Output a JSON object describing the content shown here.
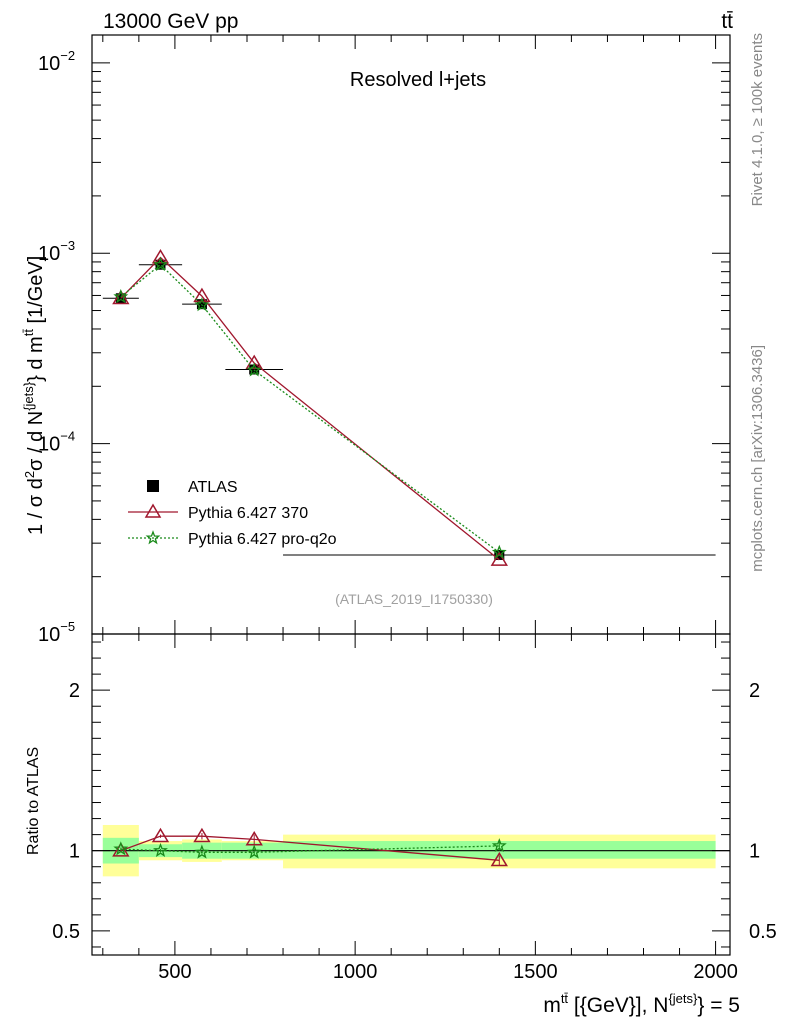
{
  "header": {
    "energy_label": "13000 GeV pp",
    "process_label": "tt̄"
  },
  "side_labels": {
    "rivet": "Rivet 4.1.0, ≥ 100k events",
    "mcplots": "mcplots.cern.ch [arXiv:1306.3436]"
  },
  "chart_data": [
    {
      "type": "line",
      "panel": "main",
      "title": "Resolved l+jets",
      "analysis_id": "(ATLAS_2019_I1750330)",
      "ylabel": "1 / σ d²σ / d N^{jets} d m^{tt̄} [1/GeV]",
      "yscale": "log",
      "ylim": [
        1e-05,
        0.014
      ],
      "xlim": [
        270,
        2040
      ],
      "xticks": [
        500,
        1000,
        1500,
        2000
      ],
      "ytick_labels": [
        {
          "value": 0.01,
          "base": "10",
          "exp": "−2"
        },
        {
          "value": 0.001,
          "base": "10",
          "exp": "−3"
        },
        {
          "value": 0.0001,
          "base": "10",
          "exp": "−4"
        },
        {
          "value": 1e-05,
          "base": "10",
          "exp": "−5"
        }
      ],
      "legend_position": "bottom-left",
      "series": [
        {
          "name": "ATLAS",
          "marker": "square",
          "color": "#000000",
          "x": [
            350,
            460,
            575,
            720,
            1400
          ],
          "y": [
            0.00058,
            0.00087,
            0.00054,
            0.000245,
            2.6e-05
          ],
          "xerr": [
            50,
            60,
            55,
            80,
            600
          ]
        },
        {
          "name": "Pythia 6.427 370",
          "marker": "triangle",
          "color": "#a0172d",
          "line": "solid",
          "x": [
            350,
            460,
            575,
            720,
            1400
          ],
          "y": [
            0.00058,
            0.00095,
            0.000595,
            0.000265,
            2.45e-05
          ]
        },
        {
          "name": "Pythia 6.427 pro-q2o",
          "marker": "star",
          "color": "#1a8a1a",
          "line": "dotted",
          "x": [
            350,
            460,
            575,
            720,
            1400
          ],
          "y": [
            0.00059,
            0.00087,
            0.000535,
            0.000243,
            2.68e-05
          ]
        }
      ]
    },
    {
      "type": "line",
      "panel": "ratio",
      "ylabel": "Ratio to ATLAS",
      "xlabel": "m^{tt̄} [{GeV}], N^{jets} = 5",
      "ylim": [
        0.35,
        2.35
      ],
      "xlim": [
        270,
        2040
      ],
      "xticks": [
        500,
        1000,
        1500,
        2000
      ],
      "yticks": [
        0.5,
        1,
        2
      ],
      "bands": [
        {
          "x0": 300,
          "x1": 400,
          "inner": [
            0.92,
            1.08
          ],
          "outer": [
            0.84,
            1.16
          ]
        },
        {
          "x0": 400,
          "x1": 520,
          "inner": [
            0.96,
            1.04
          ],
          "outer": [
            0.94,
            1.06
          ]
        },
        {
          "x0": 520,
          "x1": 630,
          "inner": [
            0.95,
            1.05
          ],
          "outer": [
            0.93,
            1.07
          ]
        },
        {
          "x0": 630,
          "x1": 800,
          "inner": [
            0.95,
            1.05
          ],
          "outer": [
            0.94,
            1.06
          ]
        },
        {
          "x0": 800,
          "x1": 2000,
          "inner": [
            0.95,
            1.06
          ],
          "outer": [
            0.89,
            1.1
          ]
        }
      ],
      "series": [
        {
          "name": "Pythia 6.427 370",
          "marker": "triangle",
          "color": "#a0172d",
          "line": "solid",
          "x": [
            350,
            460,
            575,
            720,
            1400
          ],
          "y": [
            1.0,
            1.09,
            1.09,
            1.07,
            0.94
          ],
          "err": [
            0.01,
            0.01,
            0.02,
            0.03,
            0.03
          ]
        },
        {
          "name": "Pythia 6.427 pro-q2o",
          "marker": "star",
          "color": "#1a8a1a",
          "line": "dotted",
          "x": [
            350,
            460,
            575,
            720,
            1400
          ],
          "y": [
            1.01,
            1.0,
            0.99,
            0.99,
            1.03
          ],
          "err": [
            0.01,
            0.01,
            0.01,
            0.02,
            0.03
          ]
        }
      ]
    }
  ]
}
